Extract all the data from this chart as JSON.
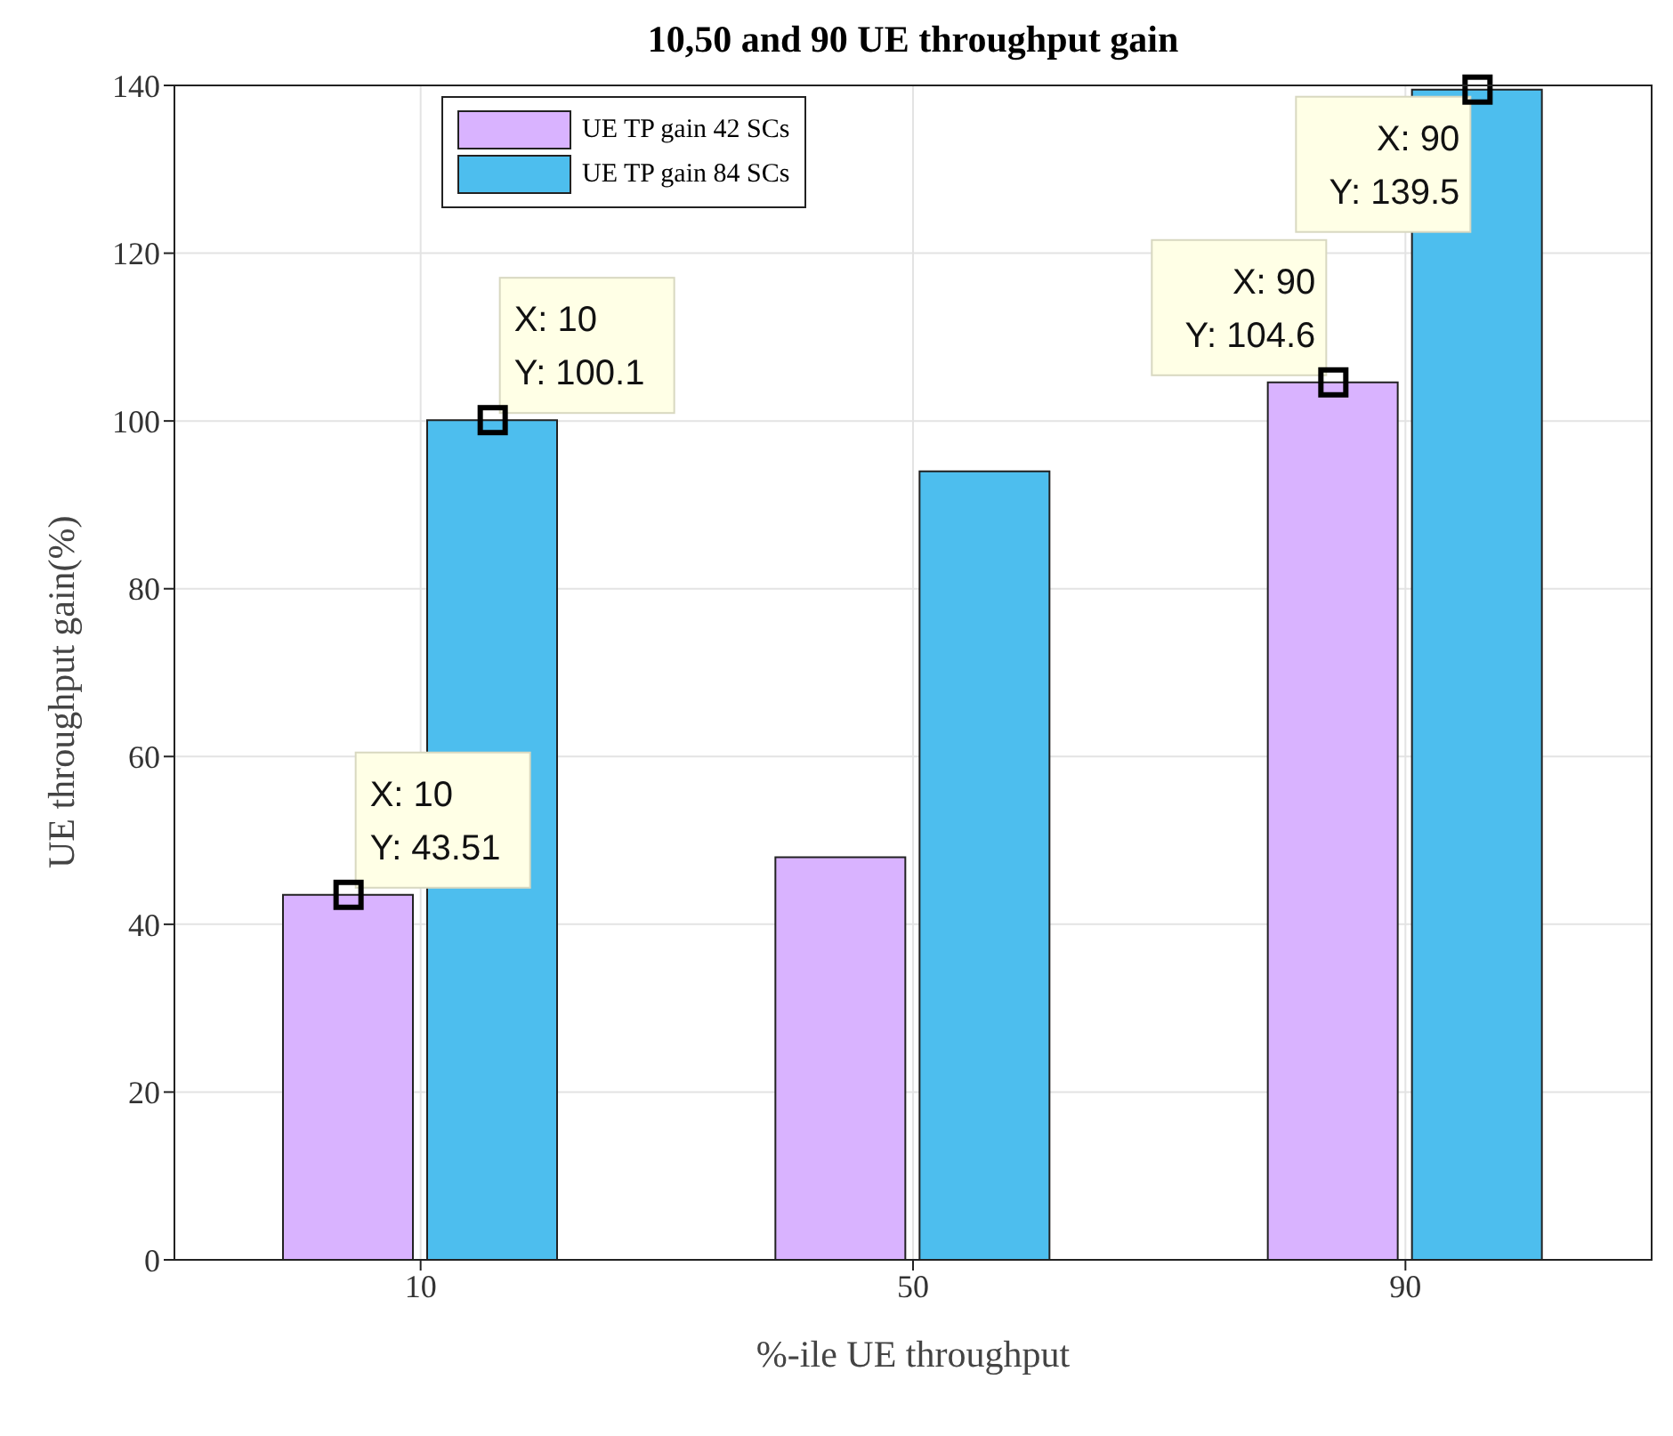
{
  "chart_data": {
    "type": "bar",
    "title": "10,50 and 90 UE throughput gain",
    "xlabel": "%-ile UE throughput",
    "ylabel": "UE throughput gain(%)",
    "categories": [
      "10",
      "50",
      "90"
    ],
    "series": [
      {
        "name": "UE TP gain 42 SCs",
        "color": "#d9b3ff",
        "values": [
          43.51,
          48,
          104.6
        ]
      },
      {
        "name": "UE TP gain 84 SCs",
        "color": "#4dbeee",
        "values": [
          100.1,
          94,
          139.5
        ]
      }
    ],
    "ylim": [
      0,
      140
    ],
    "yticks": [
      0,
      20,
      40,
      60,
      80,
      100,
      120,
      140
    ],
    "grid": true,
    "legend": "top left",
    "annotations": [
      {
        "text": "X: 10\nY: 43.51",
        "x": "10",
        "y": 43.51
      },
      {
        "text": "X: 10\nY: 100.1",
        "x": "10",
        "y": 100.1
      },
      {
        "text": "X: 90\nY: 104.6",
        "x": "90",
        "y": 104.6
      },
      {
        "text": "X: 90\nY: 139.5",
        "x": "90",
        "y": 139.5
      }
    ]
  }
}
